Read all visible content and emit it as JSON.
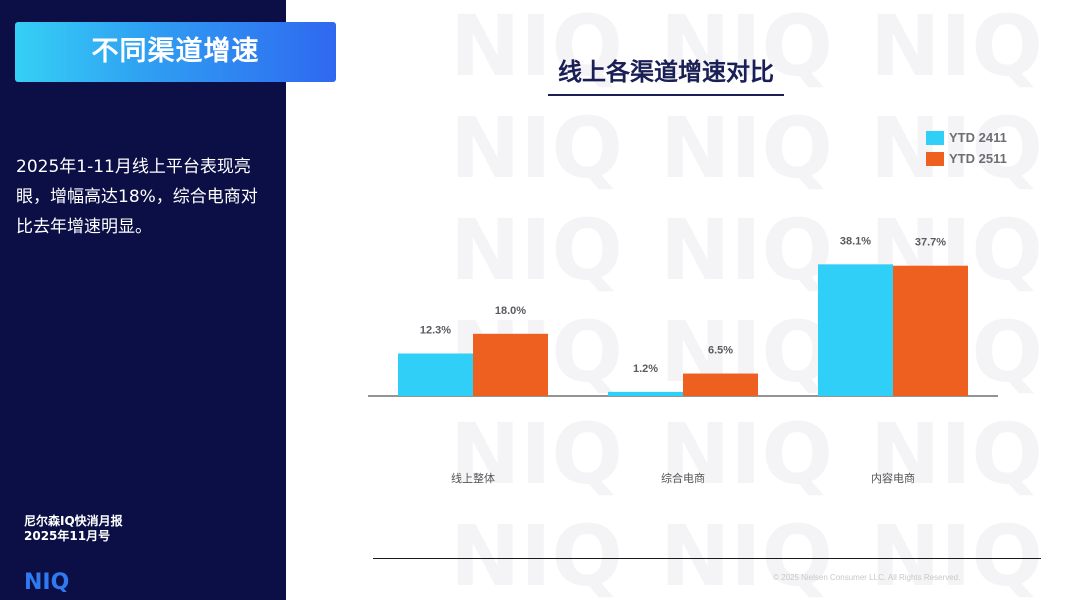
{
  "sidebar": {
    "tag": "不同渠道增速",
    "summary": "2025年1-11月线上平台表现亮眼，增幅高达18%，综合电商对比去年增速明显。",
    "report_line1": "尼尔森IQ快消月报",
    "report_line2": "2025年11月号",
    "logo_text": "NIQ"
  },
  "watermark": {
    "text": "NIQ"
  },
  "footer": {
    "copyright": "© 2025 Nielsen Consumer LLC. All Rights Reserved."
  },
  "colors": {
    "sidebar": "#0b0f45",
    "series_2411": "#30cff7",
    "series_2511": "#ee601f",
    "title": "#1a1f55"
  },
  "chart_data": {
    "type": "bar",
    "title": "线上各渠道增速对比",
    "categories": [
      "线上整体",
      "综合电商",
      "内容电商"
    ],
    "series": [
      {
        "name": "YTD 2411",
        "values": [
          12.3,
          1.2,
          38.1
        ],
        "labels": [
          "12.3%",
          "1.2%",
          "38.1%"
        ],
        "color": "#30cff7"
      },
      {
        "name": "YTD 2511",
        "values": [
          18.0,
          6.5,
          37.7
        ],
        "labels": [
          "18.0%",
          "6.5%",
          "37.7%"
        ],
        "color": "#ee601f"
      }
    ],
    "ylim": [
      0,
      40
    ],
    "grid": false,
    "legend": "top-right"
  }
}
